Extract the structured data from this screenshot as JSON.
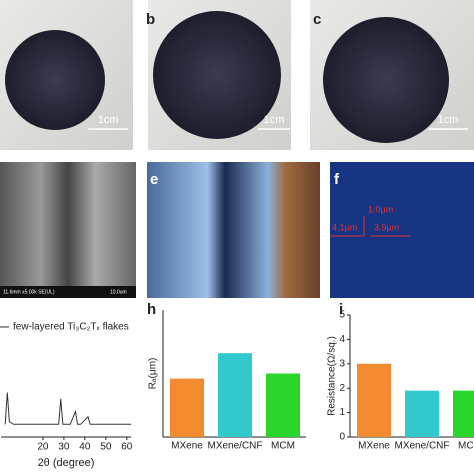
{
  "figure": {
    "panel_labels": [
      "b",
      "c",
      "e",
      "f",
      "h",
      "i"
    ],
    "scale_bars": [
      "1cm",
      "1cm",
      "1cm"
    ],
    "sem_info": [
      "11.6mm x5.00k SE(UL)",
      "10.0um"
    ],
    "measurements": [
      "1.0μm",
      "4.1μm",
      "3.9μm"
    ]
  },
  "chart_data": [
    {
      "type": "line",
      "xlabel": "2θ (degree)",
      "xlim": [
        0,
        62
      ],
      "xticks": [
        20,
        30,
        40,
        50,
        60
      ],
      "ylim": [
        0,
        10
      ],
      "series": [
        {
          "name": "few-layered Ti₃C₂Tₓ flakes",
          "color": "#333333",
          "x": [
            2,
            3,
            4,
            6,
            10,
            15,
            20,
            25,
            27.5,
            28.5,
            29.5,
            33,
            35.5,
            36.5,
            38,
            41.5,
            42.5,
            45,
            50,
            55,
            60,
            62
          ],
          "values": [
            1,
            3.5,
            1.2,
            1,
            1,
            1,
            1,
            1,
            1,
            3,
            1,
            1,
            2,
            1,
            1,
            1.6,
            1,
            1,
            1,
            1,
            1,
            1
          ]
        }
      ]
    },
    {
      "type": "bar",
      "ylabel": "Rₐ(μm)",
      "ylim": [
        0,
        5
      ],
      "categories": [
        "MXene",
        "MXene/CNF",
        "MCM"
      ],
      "values": [
        2.3,
        3.3,
        2.5
      ],
      "colors": [
        "#f28a30",
        "#33c9cc",
        "#2bd62b"
      ]
    },
    {
      "type": "bar",
      "ylabel": "Resistance(Ω/sq.)",
      "ylim": [
        0,
        5
      ],
      "yticks": [
        0,
        1,
        2,
        3,
        4,
        5
      ],
      "categories": [
        "MXene",
        "MXene/CNF",
        "MCM"
      ],
      "values": [
        3.0,
        1.9,
        1.9
      ],
      "colors": [
        "#f28a30",
        "#33c9cc",
        "#2bd62b"
      ]
    }
  ]
}
